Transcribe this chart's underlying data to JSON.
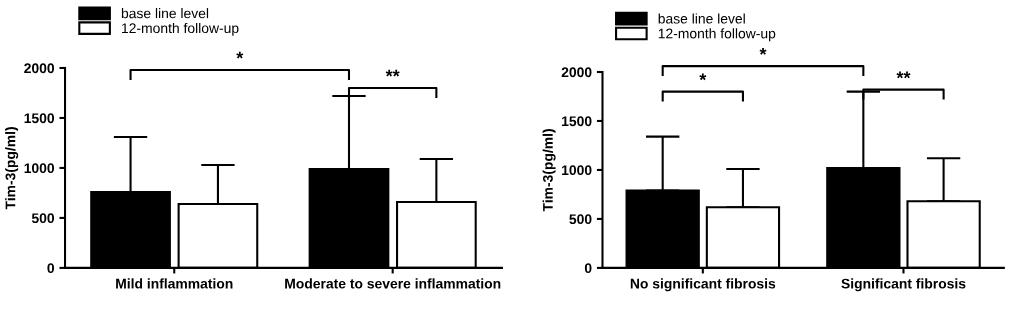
{
  "chart_data": [
    {
      "type": "bar",
      "ylabel": "Tim-3(pg/ml)",
      "categories": [
        "Mild inflammation",
        "Moderate to severe inflammation"
      ],
      "ylim": [
        0,
        2000
      ],
      "yticks": [
        0,
        500,
        1000,
        1500,
        2000
      ],
      "grid": false,
      "legend": "top left",
      "series": [
        {
          "name": "base line level",
          "color": "#000000",
          "values": [
            760,
            990
          ],
          "errors": [
            [
              760,
              1310
            ],
            [
              990,
              1720
            ]
          ]
        },
        {
          "name": "12-month follow-up",
          "color": "#ffffff",
          "values": [
            640,
            660
          ],
          "errors": [
            [
              640,
              1030
            ],
            [
              660,
              1090
            ]
          ]
        }
      ],
      "annotations": [
        "*",
        "**"
      ]
    },
    {
      "type": "bar",
      "ylabel": "Tim-3(pg/ml)",
      "categories": [
        "No significant fibrosis",
        "Significant fibrosis"
      ],
      "ylim": [
        0,
        2000
      ],
      "yticks": [
        0,
        500,
        1000,
        1500,
        2000
      ],
      "grid": false,
      "legend": "top left",
      "series": [
        {
          "name": "base line level",
          "color": "#000000",
          "values": [
            790,
            1020
          ],
          "errors": [
            [
              790,
              1340
            ],
            [
              1020,
              1800
            ]
          ]
        },
        {
          "name": "12-month follow-up",
          "color": "#ffffff",
          "values": [
            620,
            680
          ],
          "errors": [
            [
              620,
              1010
            ],
            [
              680,
              1120
            ]
          ]
        }
      ],
      "annotations": [
        "*",
        "*",
        "**"
      ]
    }
  ]
}
